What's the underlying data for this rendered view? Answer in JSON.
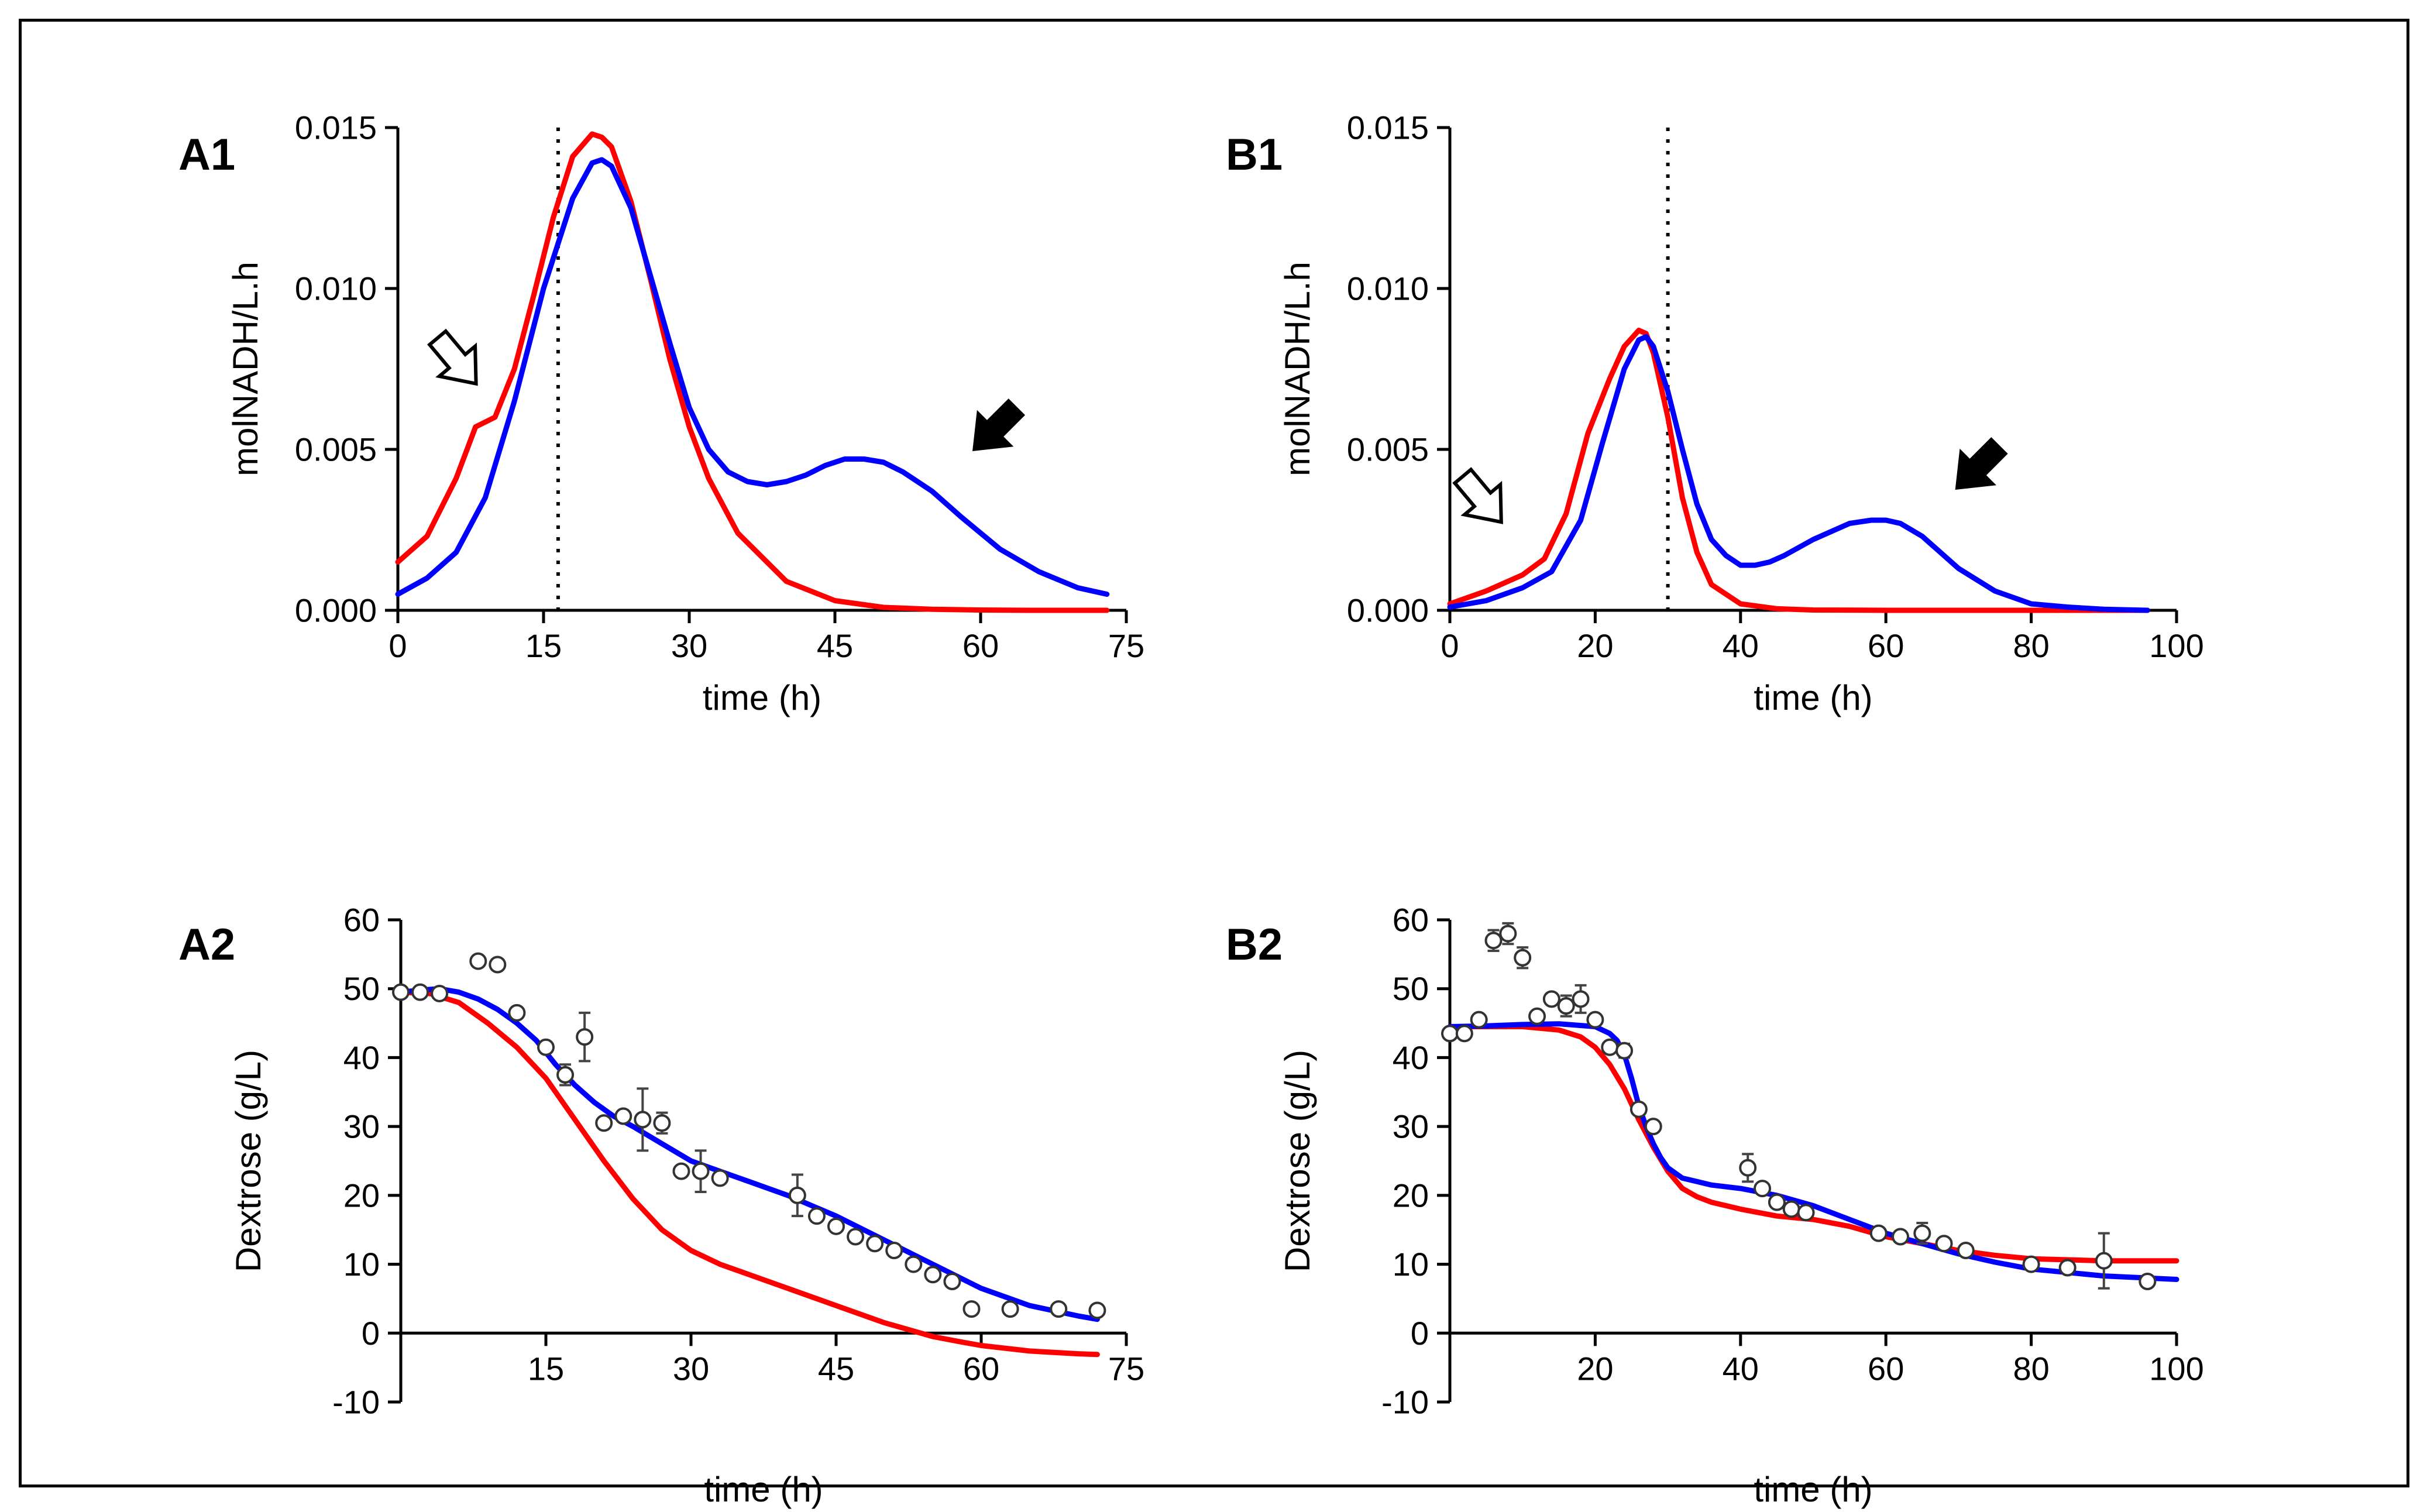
{
  "colors": {
    "red_model": "#ff0000",
    "blue_model": "#0000ff",
    "axis": "#000000",
    "marker_fill": "#ffffff"
  },
  "chart_data": [
    {
      "id": "A1",
      "panel_label": "A1",
      "type": "line",
      "xlabel": "time (h)",
      "ylabel": "molNADH/L.h",
      "xlim": [
        0,
        75
      ],
      "ylim": [
        0,
        0.015
      ],
      "xticks": [
        0,
        15,
        30,
        45,
        60,
        75
      ],
      "xtick_labels": [
        "0",
        "15",
        "30",
        "45",
        "60",
        "75"
      ],
      "yticks": [
        0,
        0.005,
        0.01,
        0.015
      ],
      "ytick_labels": [
        "0.000",
        "0.005",
        "0.010",
        "0.015"
      ],
      "vline": {
        "x": 16.5,
        "style": "dotted"
      },
      "series": [
        {
          "name": "red model",
          "color": "#ff0000",
          "x": [
            0,
            3,
            6,
            8,
            10,
            12,
            14,
            16,
            18,
            20,
            21,
            22,
            24,
            26,
            28,
            30,
            32,
            35,
            40,
            45,
            50,
            55,
            60,
            65,
            70,
            73
          ],
          "y": [
            0.0015,
            0.0023,
            0.0041,
            0.0057,
            0.006,
            0.0075,
            0.0098,
            0.0122,
            0.0141,
            0.0148,
            0.0147,
            0.0144,
            0.0127,
            0.0103,
            0.0078,
            0.0057,
            0.0041,
            0.0024,
            0.0009,
            0.0003,
            9e-05,
            3e-05,
            1e-05,
            0.0,
            0.0,
            0.0
          ]
        },
        {
          "name": "blue model",
          "color": "#0000ff",
          "x": [
            0,
            3,
            6,
            9,
            12,
            15,
            18,
            20,
            21,
            22,
            24,
            26,
            28,
            30,
            32,
            34,
            36,
            38,
            40,
            42,
            44,
            46,
            48,
            50,
            52,
            55,
            58,
            62,
            66,
            70,
            73
          ],
          "y": [
            0.0005,
            0.001,
            0.0018,
            0.0035,
            0.0065,
            0.01,
            0.0128,
            0.0139,
            0.014,
            0.0138,
            0.0125,
            0.0104,
            0.0083,
            0.0063,
            0.005,
            0.0043,
            0.004,
            0.0039,
            0.004,
            0.0042,
            0.0045,
            0.0047,
            0.0047,
            0.0046,
            0.0043,
            0.0037,
            0.0029,
            0.0019,
            0.0012,
            0.0007,
            0.0005
          ]
        }
      ],
      "annotations": [
        {
          "type": "arrow-open",
          "x": 6.5,
          "y": 0.0076
        },
        {
          "type": "arrow-filled",
          "x": 61,
          "y": 0.0055
        }
      ]
    },
    {
      "id": "B1",
      "panel_label": "B1",
      "type": "line",
      "xlabel": "time (h)",
      "ylabel": "molNADH/L.h",
      "xlim": [
        0,
        100
      ],
      "ylim": [
        0,
        0.015
      ],
      "xticks": [
        0,
        20,
        40,
        60,
        80,
        100
      ],
      "xtick_labels": [
        "0",
        "20",
        "40",
        "60",
        "80",
        "100"
      ],
      "yticks": [
        0,
        0.005,
        0.01,
        0.015
      ],
      "ytick_labels": [
        "0.000",
        "0.005",
        "0.010",
        "0.015"
      ],
      "vline": {
        "x": 30,
        "style": "dotted"
      },
      "series": [
        {
          "name": "red model",
          "color": "#ff0000",
          "x": [
            0,
            5,
            10,
            13,
            16,
            19,
            22,
            24,
            26,
            27,
            28,
            30,
            32,
            34,
            36,
            40,
            45,
            50,
            60,
            80,
            96
          ],
          "y": [
            0.0002,
            0.0006,
            0.0011,
            0.0016,
            0.003,
            0.0055,
            0.0072,
            0.0082,
            0.0087,
            0.0086,
            0.008,
            0.006,
            0.0035,
            0.0018,
            0.0008,
            0.0002,
            5e-05,
            1e-05,
            0.0,
            0.0,
            0.0
          ]
        },
        {
          "name": "blue model",
          "color": "#0000ff",
          "x": [
            0,
            5,
            10,
            14,
            18,
            21,
            24,
            26,
            27,
            28,
            30,
            32,
            34,
            36,
            38,
            40,
            42,
            44,
            46,
            50,
            55,
            58,
            60,
            62,
            65,
            70,
            75,
            80,
            85,
            90,
            96
          ],
          "y": [
            0.0001,
            0.0003,
            0.0007,
            0.0012,
            0.0028,
            0.0052,
            0.0075,
            0.0084,
            0.0085,
            0.0082,
            0.0068,
            0.005,
            0.0033,
            0.0022,
            0.0017,
            0.0014,
            0.0014,
            0.0015,
            0.0017,
            0.0022,
            0.0027,
            0.0028,
            0.0028,
            0.0027,
            0.0023,
            0.0013,
            0.0006,
            0.0002,
            0.0001,
            3e-05,
            0.0
          ]
        }
      ],
      "annotations": [
        {
          "type": "arrow-open",
          "x": 5,
          "y": 0.0033
        },
        {
          "type": "arrow-filled",
          "x": 72,
          "y": 0.0043
        }
      ]
    },
    {
      "id": "A2",
      "panel_label": "A2",
      "type": "line",
      "xlabel": "time (h)",
      "ylabel": "Dextrose (g/L)",
      "xlim": [
        0,
        75
      ],
      "ylim": [
        -10,
        60
      ],
      "xticks": [
        15,
        30,
        45,
        60,
        75
      ],
      "xtick_labels": [
        "15",
        "30",
        "45",
        "60",
        "75"
      ],
      "yticks": [
        -10,
        0,
        10,
        20,
        30,
        40,
        50,
        60
      ],
      "ytick_labels": [
        "-10",
        "0",
        "10",
        "20",
        "30",
        "40",
        "50",
        "60"
      ],
      "series": [
        {
          "name": "red model",
          "color": "#ff0000",
          "x": [
            0,
            3,
            6,
            9,
            12,
            15,
            18,
            21,
            24,
            27,
            30,
            33,
            36,
            40,
            45,
            50,
            55,
            58,
            60,
            65,
            70,
            72
          ],
          "y": [
            49.5,
            49.3,
            48,
            45,
            41.5,
            37,
            31,
            25,
            19.5,
            15,
            12,
            10,
            8.5,
            6.5,
            4,
            1.5,
            -0.5,
            -1.3,
            -1.8,
            -2.6,
            -3.0,
            -3.1
          ]
        },
        {
          "name": "blue model",
          "color": "#0000ff",
          "x": [
            0,
            2,
            4,
            6,
            8,
            10,
            12,
            14,
            16,
            18,
            20,
            22,
            24,
            27,
            30,
            33,
            36,
            40,
            45,
            50,
            55,
            60,
            65,
            70,
            72
          ],
          "y": [
            49.5,
            49.8,
            50,
            49.5,
            48.5,
            47,
            45,
            42.5,
            39,
            36,
            33.5,
            31.5,
            30,
            27.5,
            25,
            23.5,
            22,
            20,
            17,
            13.5,
            10,
            6.5,
            4,
            2.5,
            2
          ]
        }
      ],
      "points": {
        "x": [
          0,
          2,
          4,
          8,
          10,
          12,
          15,
          17,
          19,
          21,
          23,
          25,
          27,
          29,
          31,
          33,
          41,
          43,
          45,
          47,
          49,
          51,
          53,
          55,
          57,
          59,
          63,
          68,
          72
        ],
        "y": [
          49.5,
          49.5,
          49.3,
          54,
          53.5,
          46.5,
          41.5,
          37.5,
          43,
          30.5,
          31.5,
          31,
          30.5,
          23.5,
          23.5,
          22.5,
          20,
          17,
          15.5,
          14,
          13,
          12,
          10,
          8.5,
          7.5,
          3.5,
          3.5,
          3.5,
          3.3
        ],
        "err": [
          0,
          0,
          0,
          0,
          0,
          0,
          0,
          1.5,
          3.5,
          0,
          0,
          4.5,
          1.5,
          0,
          3,
          0,
          3,
          0,
          0,
          0,
          0,
          0,
          0,
          0,
          0,
          0,
          0,
          0,
          0
        ]
      }
    },
    {
      "id": "B2",
      "panel_label": "B2",
      "type": "line",
      "xlabel": "time (h)",
      "ylabel": "Dextrose (g/L)",
      "xlim": [
        0,
        100
      ],
      "ylim": [
        -10,
        60
      ],
      "xticks": [
        20,
        40,
        60,
        80,
        100
      ],
      "xtick_labels": [
        "20",
        "40",
        "60",
        "80",
        "100"
      ],
      "yticks": [
        -10,
        0,
        10,
        20,
        30,
        40,
        50,
        60
      ],
      "ytick_labels": [
        "-10",
        "0",
        "10",
        "20",
        "30",
        "40",
        "50",
        "60"
      ],
      "series": [
        {
          "name": "red model",
          "color": "#ff0000",
          "x": [
            0,
            5,
            10,
            15,
            18,
            20,
            22,
            24,
            26,
            28,
            30,
            32,
            34,
            36,
            40,
            45,
            50,
            55,
            60,
            65,
            70,
            75,
            80,
            90,
            100
          ],
          "y": [
            44.5,
            44.5,
            44.5,
            44,
            43,
            41.5,
            39,
            35.5,
            31,
            27,
            23.5,
            21,
            19.8,
            19,
            18,
            17,
            16.5,
            15.5,
            14,
            13,
            12,
            11.3,
            10.8,
            10.5,
            10.5
          ]
        },
        {
          "name": "blue model",
          "color": "#0000ff",
          "x": [
            0,
            5,
            10,
            15,
            20,
            22,
            23,
            24,
            25,
            26,
            27,
            28,
            29,
            30,
            32,
            34,
            36,
            40,
            45,
            50,
            55,
            60,
            65,
            70,
            75,
            80,
            90,
            100
          ],
          "y": [
            44.5,
            44.6,
            44.8,
            44.9,
            44.5,
            43.5,
            42.5,
            40.5,
            37,
            33,
            30,
            27.5,
            25.5,
            24,
            22.5,
            22,
            21.5,
            21,
            20,
            18.5,
            16.5,
            14.5,
            13,
            11.5,
            10.3,
            9.3,
            8.3,
            7.8
          ]
        }
      ],
      "points": {
        "x": [
          0,
          2,
          4,
          6,
          8,
          10,
          12,
          14,
          16,
          18,
          20,
          22,
          24,
          26,
          28,
          41,
          43,
          45,
          47,
          49,
          59,
          62,
          65,
          68,
          71,
          80,
          85,
          90,
          96
        ],
        "y": [
          43.5,
          43.5,
          45.5,
          57,
          58,
          54.5,
          46,
          48.5,
          47.5,
          48.5,
          45.5,
          41.5,
          41,
          32.5,
          30,
          24,
          21,
          19,
          18,
          17.5,
          14.5,
          14,
          14.5,
          13,
          12,
          10,
          9.5,
          10.5,
          7.5
        ],
        "err": [
          0,
          0,
          0,
          1.5,
          1.5,
          1.5,
          0,
          0,
          1.5,
          2,
          0,
          0,
          1,
          0,
          0,
          2,
          0,
          0,
          0,
          0,
          0,
          0,
          1.5,
          0,
          0,
          0,
          0,
          4,
          0
        ]
      }
    }
  ]
}
